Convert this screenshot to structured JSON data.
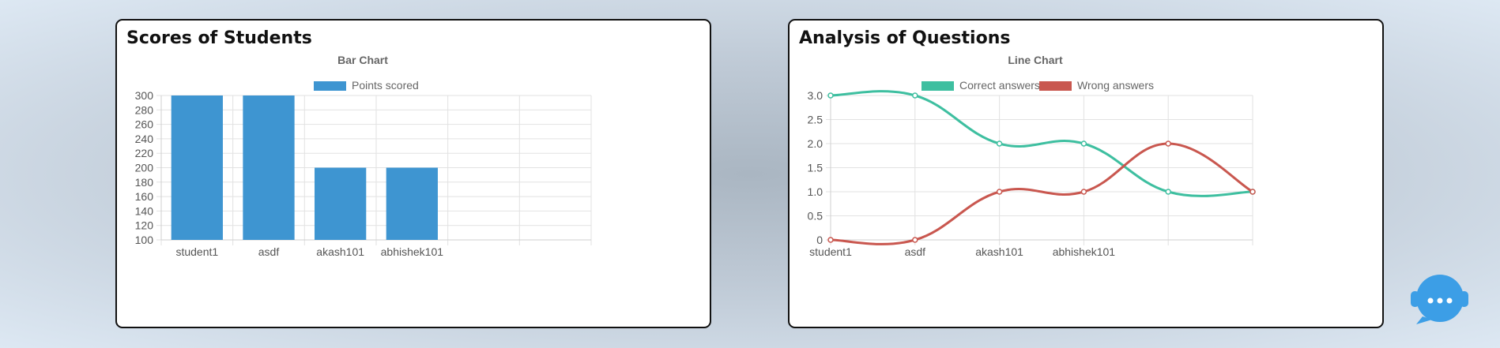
{
  "cards": {
    "bar_title": "Scores of Students",
    "line_title": "Analysis of Questions"
  },
  "chart_data": [
    {
      "type": "bar",
      "title": "Bar Chart",
      "categories": [
        "student1",
        "asdf",
        "akash101",
        "abhishek101",
        "",
        ""
      ],
      "series": [
        {
          "name": "Points scored",
          "values": [
            300,
            300,
            200,
            200,
            null,
            null
          ],
          "color": "#3e95d1"
        }
      ],
      "ylim": [
        100,
        300
      ],
      "yticks": [
        100,
        120,
        140,
        160,
        180,
        200,
        220,
        240,
        260,
        280,
        300
      ],
      "grid": true,
      "legend": "top-center"
    },
    {
      "type": "line",
      "title": "Line Chart",
      "categories": [
        "student1",
        "asdf",
        "akash101",
        "abhishek101",
        "",
        ""
      ],
      "series": [
        {
          "name": "Correct answers",
          "values": [
            3,
            3,
            2,
            2,
            1,
            1
          ],
          "color": "#3ebfa0"
        },
        {
          "name": "Wrong answers",
          "values": [
            0,
            0,
            1,
            1,
            2,
            1
          ],
          "color": "#c9574f"
        }
      ],
      "ylim": [
        0,
        3
      ],
      "yticks": [
        "0",
        "0.5",
        "1.0",
        "1.5",
        "2.0",
        "2.5",
        "3.0"
      ],
      "grid": true,
      "legend": "top-center"
    }
  ],
  "widgets": {
    "chat_icon": "chat-bot-icon"
  }
}
